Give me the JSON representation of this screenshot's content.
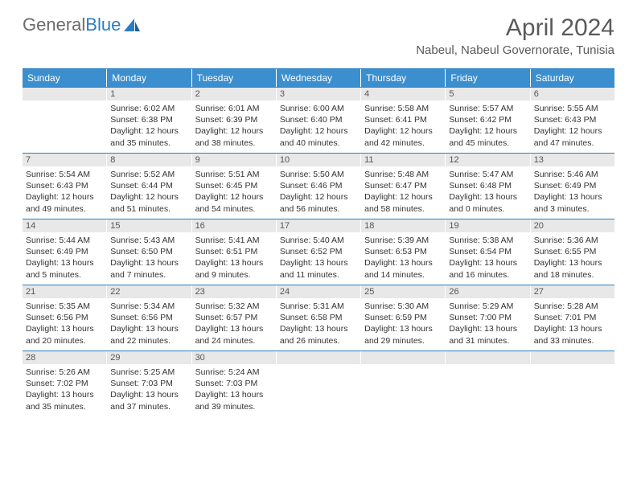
{
  "logo": {
    "text1": "General",
    "text2": "Blue"
  },
  "title": "April 2024",
  "location": "Nabeul, Nabeul Governorate, Tunisia",
  "colors": {
    "header_bg": "#3b8fcf",
    "border": "#2b7ec2",
    "daynum_bg": "#e8e8e8",
    "text": "#333333",
    "logo_gray": "#6b6b6b",
    "logo_blue": "#2b7ec2"
  },
  "dow": [
    "Sunday",
    "Monday",
    "Tuesday",
    "Wednesday",
    "Thursday",
    "Friday",
    "Saturday"
  ],
  "weeks": [
    [
      {
        "day": "",
        "lines": []
      },
      {
        "day": "1",
        "lines": [
          "Sunrise: 6:02 AM",
          "Sunset: 6:38 PM",
          "Daylight: 12 hours",
          "and 35 minutes."
        ]
      },
      {
        "day": "2",
        "lines": [
          "Sunrise: 6:01 AM",
          "Sunset: 6:39 PM",
          "Daylight: 12 hours",
          "and 38 minutes."
        ]
      },
      {
        "day": "3",
        "lines": [
          "Sunrise: 6:00 AM",
          "Sunset: 6:40 PM",
          "Daylight: 12 hours",
          "and 40 minutes."
        ]
      },
      {
        "day": "4",
        "lines": [
          "Sunrise: 5:58 AM",
          "Sunset: 6:41 PM",
          "Daylight: 12 hours",
          "and 42 minutes."
        ]
      },
      {
        "day": "5",
        "lines": [
          "Sunrise: 5:57 AM",
          "Sunset: 6:42 PM",
          "Daylight: 12 hours",
          "and 45 minutes."
        ]
      },
      {
        "day": "6",
        "lines": [
          "Sunrise: 5:55 AM",
          "Sunset: 6:43 PM",
          "Daylight: 12 hours",
          "and 47 minutes."
        ]
      }
    ],
    [
      {
        "day": "7",
        "lines": [
          "Sunrise: 5:54 AM",
          "Sunset: 6:43 PM",
          "Daylight: 12 hours",
          "and 49 minutes."
        ]
      },
      {
        "day": "8",
        "lines": [
          "Sunrise: 5:52 AM",
          "Sunset: 6:44 PM",
          "Daylight: 12 hours",
          "and 51 minutes."
        ]
      },
      {
        "day": "9",
        "lines": [
          "Sunrise: 5:51 AM",
          "Sunset: 6:45 PM",
          "Daylight: 12 hours",
          "and 54 minutes."
        ]
      },
      {
        "day": "10",
        "lines": [
          "Sunrise: 5:50 AM",
          "Sunset: 6:46 PM",
          "Daylight: 12 hours",
          "and 56 minutes."
        ]
      },
      {
        "day": "11",
        "lines": [
          "Sunrise: 5:48 AM",
          "Sunset: 6:47 PM",
          "Daylight: 12 hours",
          "and 58 minutes."
        ]
      },
      {
        "day": "12",
        "lines": [
          "Sunrise: 5:47 AM",
          "Sunset: 6:48 PM",
          "Daylight: 13 hours",
          "and 0 minutes."
        ]
      },
      {
        "day": "13",
        "lines": [
          "Sunrise: 5:46 AM",
          "Sunset: 6:49 PM",
          "Daylight: 13 hours",
          "and 3 minutes."
        ]
      }
    ],
    [
      {
        "day": "14",
        "lines": [
          "Sunrise: 5:44 AM",
          "Sunset: 6:49 PM",
          "Daylight: 13 hours",
          "and 5 minutes."
        ]
      },
      {
        "day": "15",
        "lines": [
          "Sunrise: 5:43 AM",
          "Sunset: 6:50 PM",
          "Daylight: 13 hours",
          "and 7 minutes."
        ]
      },
      {
        "day": "16",
        "lines": [
          "Sunrise: 5:41 AM",
          "Sunset: 6:51 PM",
          "Daylight: 13 hours",
          "and 9 minutes."
        ]
      },
      {
        "day": "17",
        "lines": [
          "Sunrise: 5:40 AM",
          "Sunset: 6:52 PM",
          "Daylight: 13 hours",
          "and 11 minutes."
        ]
      },
      {
        "day": "18",
        "lines": [
          "Sunrise: 5:39 AM",
          "Sunset: 6:53 PM",
          "Daylight: 13 hours",
          "and 14 minutes."
        ]
      },
      {
        "day": "19",
        "lines": [
          "Sunrise: 5:38 AM",
          "Sunset: 6:54 PM",
          "Daylight: 13 hours",
          "and 16 minutes."
        ]
      },
      {
        "day": "20",
        "lines": [
          "Sunrise: 5:36 AM",
          "Sunset: 6:55 PM",
          "Daylight: 13 hours",
          "and 18 minutes."
        ]
      }
    ],
    [
      {
        "day": "21",
        "lines": [
          "Sunrise: 5:35 AM",
          "Sunset: 6:56 PM",
          "Daylight: 13 hours",
          "and 20 minutes."
        ]
      },
      {
        "day": "22",
        "lines": [
          "Sunrise: 5:34 AM",
          "Sunset: 6:56 PM",
          "Daylight: 13 hours",
          "and 22 minutes."
        ]
      },
      {
        "day": "23",
        "lines": [
          "Sunrise: 5:32 AM",
          "Sunset: 6:57 PM",
          "Daylight: 13 hours",
          "and 24 minutes."
        ]
      },
      {
        "day": "24",
        "lines": [
          "Sunrise: 5:31 AM",
          "Sunset: 6:58 PM",
          "Daylight: 13 hours",
          "and 26 minutes."
        ]
      },
      {
        "day": "25",
        "lines": [
          "Sunrise: 5:30 AM",
          "Sunset: 6:59 PM",
          "Daylight: 13 hours",
          "and 29 minutes."
        ]
      },
      {
        "day": "26",
        "lines": [
          "Sunrise: 5:29 AM",
          "Sunset: 7:00 PM",
          "Daylight: 13 hours",
          "and 31 minutes."
        ]
      },
      {
        "day": "27",
        "lines": [
          "Sunrise: 5:28 AM",
          "Sunset: 7:01 PM",
          "Daylight: 13 hours",
          "and 33 minutes."
        ]
      }
    ],
    [
      {
        "day": "28",
        "lines": [
          "Sunrise: 5:26 AM",
          "Sunset: 7:02 PM",
          "Daylight: 13 hours",
          "and 35 minutes."
        ]
      },
      {
        "day": "29",
        "lines": [
          "Sunrise: 5:25 AM",
          "Sunset: 7:03 PM",
          "Daylight: 13 hours",
          "and 37 minutes."
        ]
      },
      {
        "day": "30",
        "lines": [
          "Sunrise: 5:24 AM",
          "Sunset: 7:03 PM",
          "Daylight: 13 hours",
          "and 39 minutes."
        ]
      },
      {
        "day": "",
        "lines": []
      },
      {
        "day": "",
        "lines": []
      },
      {
        "day": "",
        "lines": []
      },
      {
        "day": "",
        "lines": []
      }
    ]
  ]
}
